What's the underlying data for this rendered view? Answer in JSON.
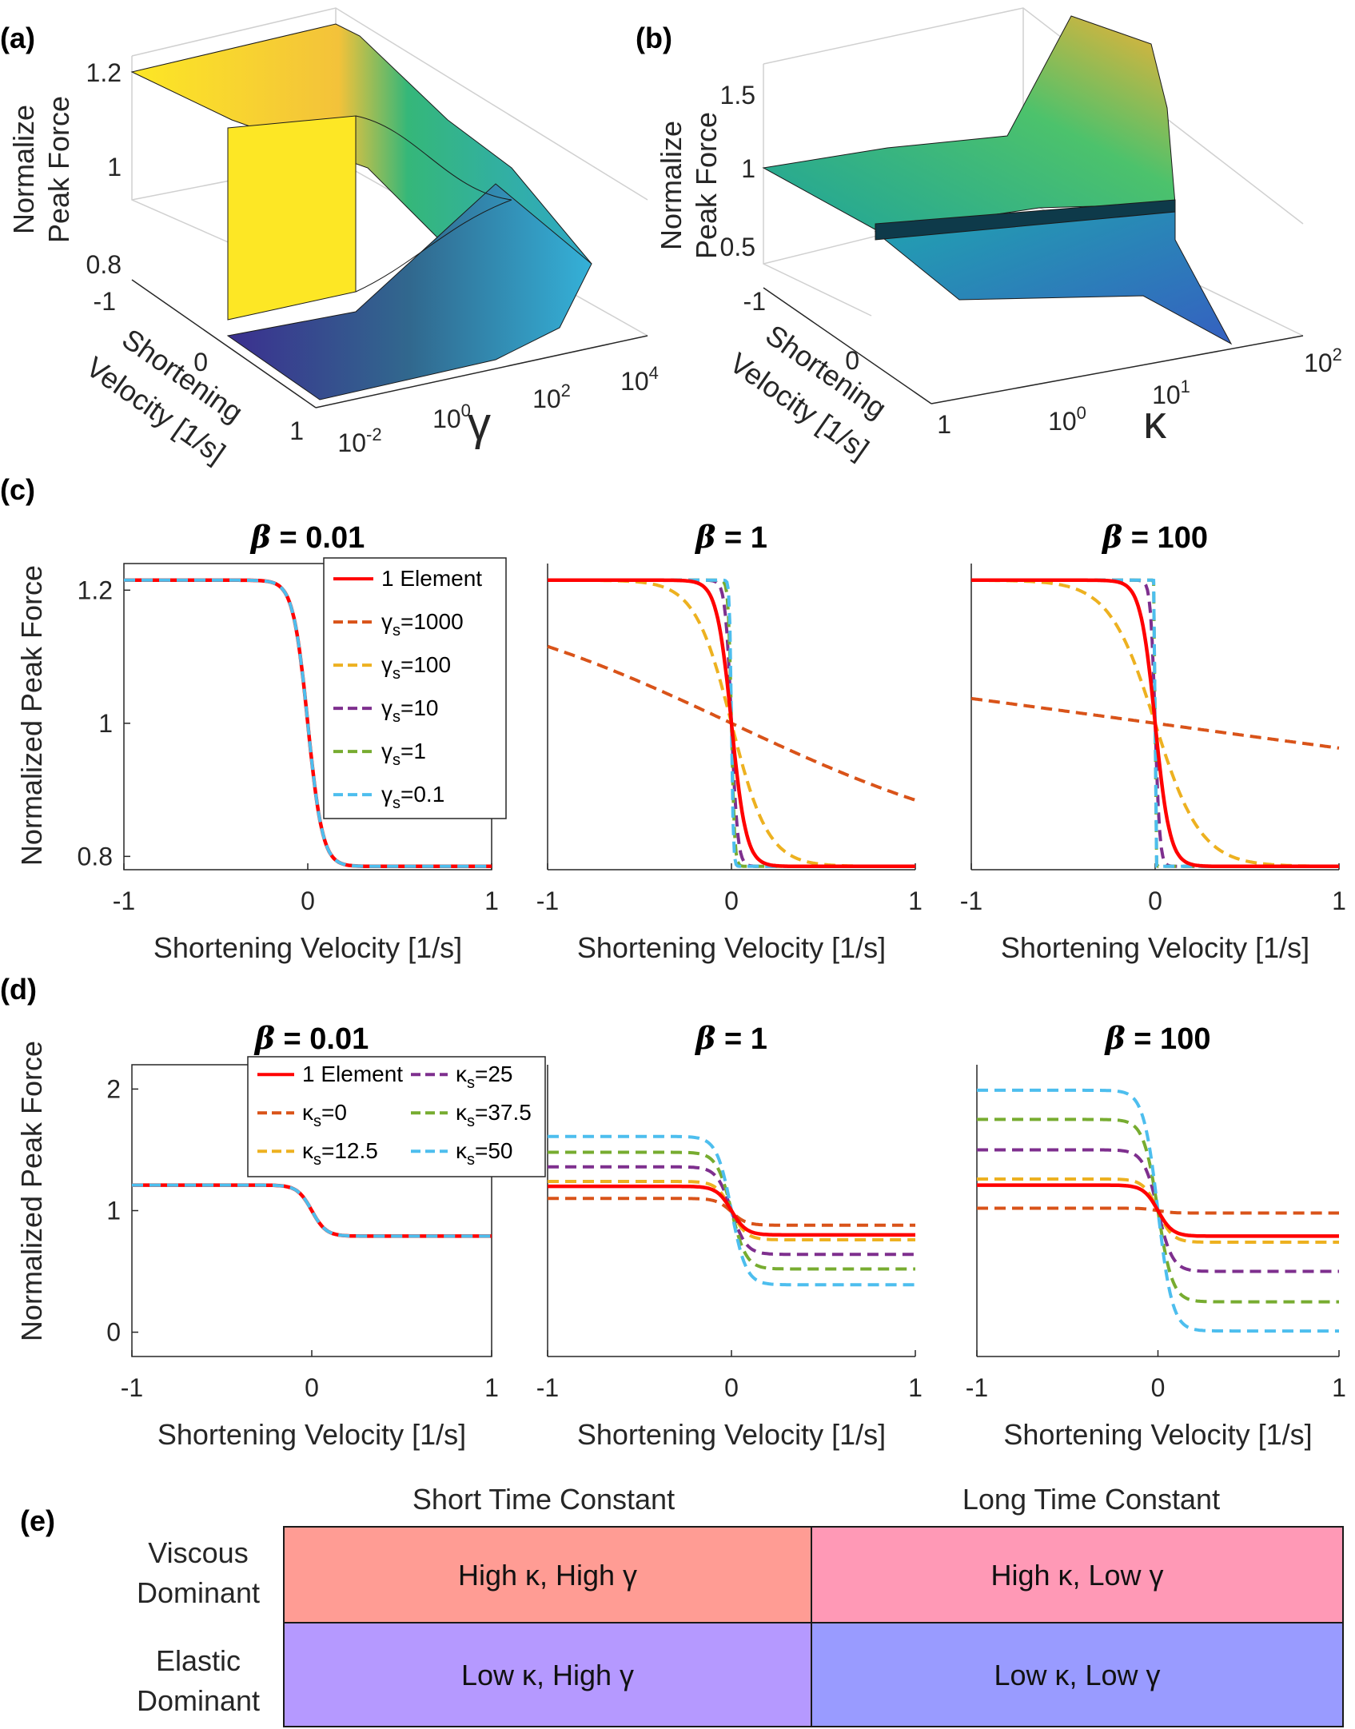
{
  "panel_labels": [
    "(a)",
    "(b)",
    "(c)",
    "(d)",
    "(e)"
  ],
  "chart_data": [
    {
      "id": "a",
      "type": "surface3d",
      "zlabel_line1": "Normalize",
      "zlabel_line2": "Peak Force",
      "zticks": [
        "0.8",
        "1",
        "1.2"
      ],
      "ylabel_line1": "Shortening",
      "ylabel_line2": "Velocity [1/s]",
      "yticks": [
        "-1",
        "0",
        "1"
      ],
      "xlabel": "γ",
      "xticks": [
        {
          "base": "10",
          "exp": "-2"
        },
        {
          "base": "10",
          "exp": "0"
        },
        {
          "base": "10",
          "exp": "2"
        },
        {
          "base": "10",
          "exp": "4"
        }
      ]
    },
    {
      "id": "b",
      "type": "surface3d",
      "zlabel_line1": "Normalize",
      "zlabel_line2": "Peak Force",
      "zticks": [
        "0.5",
        "1",
        "1.5"
      ],
      "ylabel_line1": "Shortening",
      "ylabel_line2": "Velocity [1/s]",
      "yticks": [
        "-1",
        "0",
        "1"
      ],
      "xlabel": "κ",
      "xticks": [
        {
          "base": "10",
          "exp": "0"
        },
        {
          "base": "10",
          "exp": "1"
        },
        {
          "base": "10",
          "exp": "2"
        }
      ]
    },
    {
      "id": "c",
      "type": "line",
      "ylabel": "Normalized Peak Force",
      "xlabel": "Shortening Velocity [1/s]",
      "xlim": [
        -1,
        1
      ],
      "ylim": [
        0.78,
        1.24
      ],
      "xticks": [
        "-1",
        "0",
        "1"
      ],
      "yticks": [
        {
          "v": 0.8,
          "t": "0.8"
        },
        {
          "v": 1.0,
          "t": "1"
        },
        {
          "v": 1.2,
          "t": "1.2"
        }
      ],
      "legend": [
        {
          "main": "1 Element",
          "sub": "",
          "val": "",
          "color": "#ff0000",
          "dash": false
        },
        {
          "main": "γ",
          "sub": "s",
          "val": "=1000",
          "color": "#d95319",
          "dash": true
        },
        {
          "main": "γ",
          "sub": "s",
          "val": "=100",
          "color": "#edb120",
          "dash": true
        },
        {
          "main": "γ",
          "sub": "s",
          "val": "=10",
          "color": "#7e2f8e",
          "dash": true
        },
        {
          "main": "γ",
          "sub": "s",
          "val": "=1",
          "color": "#77ac30",
          "dash": true
        },
        {
          "main": "γ",
          "sub": "s",
          "val": "=0.1",
          "color": "#4dbeee",
          "dash": true
        }
      ],
      "subplots": [
        {
          "beta_symbol": "β",
          "beta_value": " = 0.01",
          "series": [
            {
              "name": "1 Element",
              "color": "#ff0000",
              "dash": false,
              "top": 1.215,
              "bottom": 0.785,
              "k": 25
            },
            {
              "name": "γs=1000",
              "color": "#d95319",
              "dash": true,
              "top": 1.215,
              "bottom": 0.785,
              "k": 25
            },
            {
              "name": "γs=0.1",
              "color": "#4dbeee",
              "dash": true,
              "top": 1.215,
              "bottom": 0.785,
              "k": 25
            }
          ]
        },
        {
          "beta_symbol": "β",
          "beta_value": " = 1",
          "series": [
            {
              "name": "γs=1000",
              "color": "#d95319",
              "dash": true,
              "top": 1.215,
              "bottom": 0.785,
              "k": 1.2
            },
            {
              "name": "γs=100",
              "color": "#edb120",
              "dash": true,
              "top": 1.215,
              "bottom": 0.785,
              "k": 10
            },
            {
              "name": "γs=10",
              "color": "#7e2f8e",
              "dash": true,
              "top": 1.215,
              "bottom": 0.785,
              "k": 60
            },
            {
              "name": "γs=1",
              "color": "#77ac30",
              "dash": true,
              "top": 1.215,
              "bottom": 0.785,
              "k": 120
            },
            {
              "name": "γs=0.1",
              "color": "#4dbeee",
              "dash": true,
              "top": 1.215,
              "bottom": 0.785,
              "k": 200
            },
            {
              "name": "1 Element",
              "color": "#ff0000",
              "dash": false,
              "top": 1.215,
              "bottom": 0.785,
              "k": 25
            }
          ]
        },
        {
          "beta_symbol": "β",
          "beta_value": " = 100",
          "series": [
            {
              "name": "γs=1000",
              "color": "#d95319",
              "dash": true,
              "top": 1.215,
              "bottom": 0.785,
              "k": 0.35
            },
            {
              "name": "γs=100",
              "color": "#edb120",
              "dash": true,
              "top": 1.215,
              "bottom": 0.785,
              "k": 8
            },
            {
              "name": "γs=10",
              "color": "#7e2f8e",
              "dash": true,
              "top": 1.215,
              "bottom": 0.785,
              "k": 80
            },
            {
              "name": "γs=1",
              "color": "#77ac30",
              "dash": true,
              "top": 1.215,
              "bottom": 0.785,
              "k": 600
            },
            {
              "name": "γs=0.1",
              "color": "#4dbeee",
              "dash": true,
              "top": 1.215,
              "bottom": 0.785,
              "k": 900
            },
            {
              "name": "1 Element",
              "color": "#ff0000",
              "dash": false,
              "top": 1.215,
              "bottom": 0.785,
              "k": 25
            }
          ]
        }
      ]
    },
    {
      "id": "d",
      "type": "line",
      "ylabel": "Normalized Peak Force",
      "xlabel": "Shortening Velocity [1/s]",
      "xlim": [
        -1,
        1
      ],
      "ylim": [
        -0.2,
        2.2
      ],
      "xticks": [
        "-1",
        "0",
        "1"
      ],
      "yticks": [
        {
          "v": 0,
          "t": "0"
        },
        {
          "v": 1,
          "t": "1"
        },
        {
          "v": 2,
          "t": "2"
        }
      ],
      "legend": [
        {
          "main": "1 Element",
          "sub": "",
          "val": "",
          "color": "#ff0000",
          "dash": false
        },
        {
          "main": "κ",
          "sub": "s",
          "val": "=25",
          "color": "#7e2f8e",
          "dash": true
        },
        {
          "main": "κ",
          "sub": "s",
          "val": "=0",
          "color": "#d95319",
          "dash": true
        },
        {
          "main": "κ",
          "sub": "s",
          "val": "=37.5",
          "color": "#77ac30",
          "dash": true
        },
        {
          "main": "κ",
          "sub": "s",
          "val": "=12.5",
          "color": "#edb120",
          "dash": true
        },
        {
          "main": "κ",
          "sub": "s",
          "val": "=50",
          "color": "#4dbeee",
          "dash": true
        }
      ],
      "subplots": [
        {
          "beta_symbol": "β",
          "beta_value": " = 0.01",
          "series": [
            {
              "name": "1 Element",
              "color": "#ff0000",
              "dash": false,
              "top": 1.21,
              "bottom": 0.79,
              "k": 25
            },
            {
              "name": "κs=0",
              "color": "#d95319",
              "dash": true,
              "top": 1.21,
              "bottom": 0.79,
              "k": 25
            },
            {
              "name": "κs=50",
              "color": "#4dbeee",
              "dash": true,
              "top": 1.21,
              "bottom": 0.79,
              "k": 25
            }
          ]
        },
        {
          "beta_symbol": "β",
          "beta_value": " = 1",
          "series": [
            {
              "name": "κs=0",
              "color": "#d95319",
              "dash": true,
              "top": 1.1,
              "bottom": 0.88,
              "k": 25
            },
            {
              "name": "κs=12.5",
              "color": "#edb120",
              "dash": true,
              "top": 1.24,
              "bottom": 0.76,
              "k": 25
            },
            {
              "name": "κs=25",
              "color": "#7e2f8e",
              "dash": true,
              "top": 1.36,
              "bottom": 0.64,
              "k": 25
            },
            {
              "name": "κs=37.5",
              "color": "#77ac30",
              "dash": true,
              "top": 1.48,
              "bottom": 0.52,
              "k": 25
            },
            {
              "name": "κs=50",
              "color": "#4dbeee",
              "dash": true,
              "top": 1.61,
              "bottom": 0.39,
              "k": 25
            },
            {
              "name": "1 Element",
              "color": "#ff0000",
              "dash": false,
              "top": 1.2,
              "bottom": 0.8,
              "k": 25
            }
          ]
        },
        {
          "beta_symbol": "β",
          "beta_value": " = 100",
          "series": [
            {
              "name": "κs=0",
              "color": "#d95319",
              "dash": true,
              "top": 1.02,
              "bottom": 0.98,
              "k": 25
            },
            {
              "name": "κs=12.5",
              "color": "#edb120",
              "dash": true,
              "top": 1.26,
              "bottom": 0.74,
              "k": 25
            },
            {
              "name": "κs=25",
              "color": "#7e2f8e",
              "dash": true,
              "top": 1.5,
              "bottom": 0.5,
              "k": 25
            },
            {
              "name": "κs=37.5",
              "color": "#77ac30",
              "dash": true,
              "top": 1.75,
              "bottom": 0.25,
              "k": 25
            },
            {
              "name": "κs=50",
              "color": "#4dbeee",
              "dash": true,
              "top": 1.99,
              "bottom": 0.01,
              "k": 25
            },
            {
              "name": "1 Element",
              "color": "#ff0000",
              "dash": false,
              "top": 1.21,
              "bottom": 0.79,
              "k": 25
            }
          ]
        }
      ]
    },
    {
      "id": "e",
      "type": "table",
      "columns": [
        "Short Time Constant",
        "Long Time Constant"
      ],
      "rows": [
        {
          "label_line1": "Viscous",
          "label_line2": "Dominant",
          "cells": [
            {
              "text": "High κ, High γ",
              "color": "#ff9c94"
            },
            {
              "text": "High κ, Low γ",
              "color": "#ff99b6"
            }
          ]
        },
        {
          "label_line1": "Elastic",
          "label_line2": "Dominant",
          "cells": [
            {
              "text": "Low κ, High γ",
              "color": "#b599ff"
            },
            {
              "text": "Low κ, Low γ",
              "color": "#999bff"
            }
          ]
        }
      ]
    }
  ]
}
